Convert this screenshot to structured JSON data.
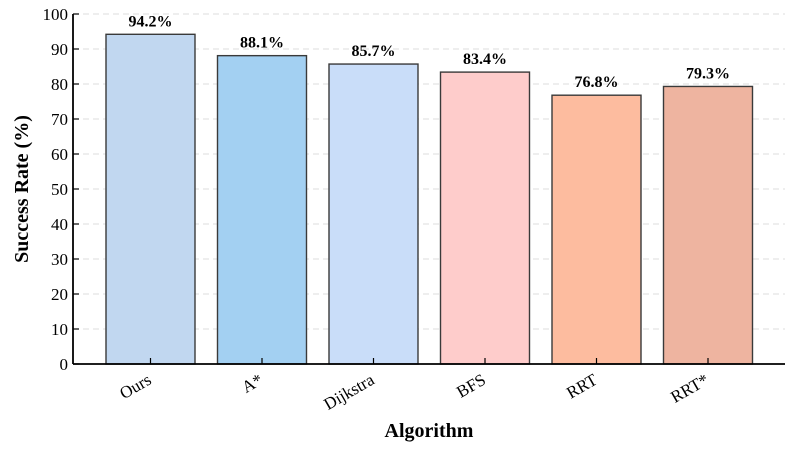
{
  "chart_data": {
    "type": "bar",
    "title": "",
    "xlabel": "Algorithm",
    "ylabel": "Success Rate (%)",
    "categories": [
      "Ours",
      "A*",
      "Dijkstra",
      "BFS",
      "RRT",
      "RRT*"
    ],
    "values": [
      94.2,
      88.1,
      85.7,
      83.4,
      76.8,
      79.3
    ],
    "data_labels": [
      "94.2%",
      "88.1%",
      "85.7%",
      "83.4%",
      "76.8%",
      "79.3%"
    ],
    "bar_colors": [
      "#c1d7f0",
      "#a3d0f2",
      "#c9ddf9",
      "#fecccb",
      "#fdbc9f",
      "#eeb4a0"
    ],
    "bar_edge_color": "#3a3a3a",
    "ylim": [
      0,
      100
    ],
    "yticks": [
      "0",
      "10",
      "20",
      "30",
      "40",
      "50",
      "60",
      "70",
      "80",
      "90",
      "100"
    ],
    "grid": "horizontal dashed",
    "grid_color": "#dddddd",
    "legend": "none"
  }
}
